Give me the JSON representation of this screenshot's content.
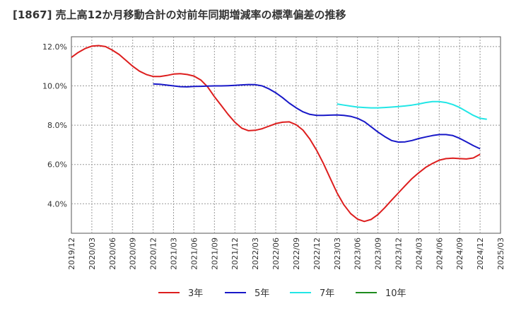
{
  "chart_data": {
    "type": "line",
    "title": "[1867]  売上高12か月移動合計の対前年同期増減率の標準偏差の推移",
    "xlabel": "",
    "ylabel": "",
    "x_ticks": [
      "2019/12",
      "2020/03",
      "2020/06",
      "2020/09",
      "2020/12",
      "2021/03",
      "2021/06",
      "2021/09",
      "2021/12",
      "2022/03",
      "2022/06",
      "2022/09",
      "2022/12",
      "2023/03",
      "2023/06",
      "2023/09",
      "2023/12",
      "2024/03",
      "2024/06",
      "2024/09",
      "2024/12",
      "2025/03"
    ],
    "y_ticks": [
      "4.0%",
      "6.0%",
      "8.0%",
      "10.0%",
      "12.0%"
    ],
    "y_tick_values": [
      4,
      6,
      8,
      10,
      12
    ],
    "ylim": [
      2.5,
      12.5
    ],
    "grid": true,
    "legend_position": "bottom",
    "series": [
      {
        "name": "3年",
        "color": "#dd1e1e",
        "start_index": 0,
        "values": [
          11.45,
          11.7,
          11.9,
          12.02,
          12.05,
          12.0,
          11.82,
          11.6,
          11.3,
          11.0,
          10.75,
          10.58,
          10.48,
          10.48,
          10.53,
          10.6,
          10.62,
          10.58,
          10.5,
          10.3,
          9.95,
          9.45,
          9.0,
          8.55,
          8.15,
          7.85,
          7.72,
          7.74,
          7.82,
          7.95,
          8.08,
          8.15,
          8.17,
          8.02,
          7.75,
          7.3,
          6.72,
          6.05,
          5.3,
          4.55,
          3.95,
          3.5,
          3.22,
          3.1,
          3.2,
          3.45,
          3.8,
          4.18,
          4.55,
          4.92,
          5.28,
          5.58,
          5.85,
          6.05,
          6.22,
          6.3,
          6.32,
          6.3,
          6.28,
          6.33,
          6.52
        ]
      },
      {
        "name": "5年",
        "color": "#1818c8",
        "start_index": 12,
        "values": [
          10.1,
          10.08,
          10.04,
          10.0,
          9.96,
          9.95,
          9.97,
          9.98,
          9.99,
          10.0,
          10.0,
          10.01,
          10.03,
          10.05,
          10.07,
          10.06,
          10.0,
          9.85,
          9.65,
          9.4,
          9.12,
          8.88,
          8.68,
          8.55,
          8.5,
          8.5,
          8.51,
          8.52,
          8.5,
          8.45,
          8.35,
          8.18,
          7.92,
          7.65,
          7.42,
          7.22,
          7.14,
          7.15,
          7.22,
          7.32,
          7.4,
          7.47,
          7.52,
          7.52,
          7.47,
          7.33,
          7.15,
          6.96,
          6.8
        ]
      },
      {
        "name": "7年",
        "color": "#22e6e6",
        "start_index": 39,
        "values": [
          9.08,
          9.02,
          8.97,
          8.92,
          8.9,
          8.88,
          8.88,
          8.9,
          8.92,
          8.95,
          8.98,
          9.02,
          9.08,
          9.15,
          9.2,
          9.2,
          9.15,
          9.05,
          8.9,
          8.7,
          8.5,
          8.35,
          8.3
        ]
      },
      {
        "name": "10年",
        "color": "#1e8c1e",
        "start_index": 0,
        "values": []
      }
    ]
  }
}
